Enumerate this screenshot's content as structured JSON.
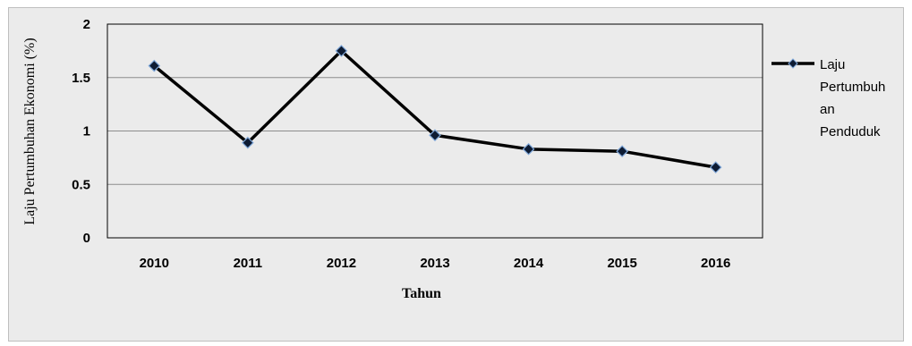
{
  "chart_data": {
    "type": "line",
    "categories": [
      "2010",
      "2011",
      "2012",
      "2013",
      "2014",
      "2015",
      "2016"
    ],
    "series": [
      {
        "name": "Laju Pertumbuhan Penduduk",
        "legend_lines": [
          "Laju",
          "Pertumbuh",
          "an",
          "Penduduk"
        ],
        "values": [
          1.61,
          0.89,
          1.75,
          0.96,
          0.83,
          0.81,
          0.66
        ],
        "color": "#000000",
        "marker_fill": "#0d1b33",
        "marker_stroke": "#7fa7d9"
      }
    ],
    "xlabel": "Tahun",
    "ylabel": "Laju Pertumbuhan Ekonomi (%)",
    "ylim": [
      0,
      2
    ],
    "yticks": [
      "0",
      "0.5",
      "1",
      "1.5",
      "2"
    ],
    "grid": true,
    "legend_position": "right"
  }
}
